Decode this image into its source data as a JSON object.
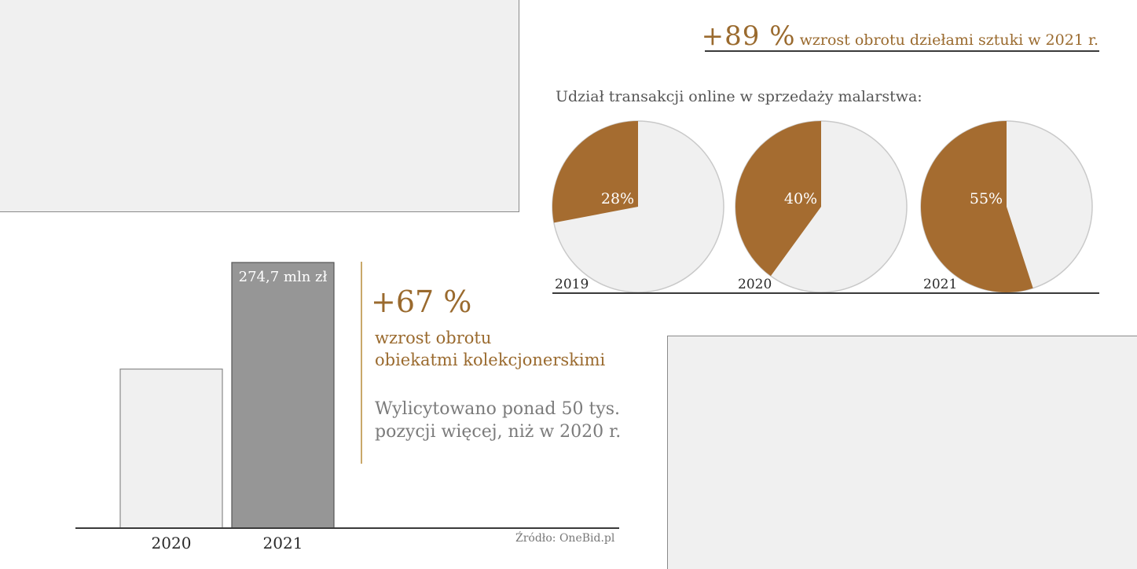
{
  "headline": {
    "value": "+89 %",
    "text": "wzrost obrotu dziełami sztuki w 2021 r."
  },
  "collectibles": {
    "value": "+67 %",
    "line1": "wzrost obrotu",
    "line2": "obiekatmi kolekcjonerskimi",
    "note_line1": "Wylicytowano ponad 50 tys.",
    "note_line2": "pozycji więcej, niż w 2020 r."
  },
  "source": "Źródło: OneBid.pl",
  "colors": {
    "accent": "#a56c30",
    "pie_rest": "#f0f0f0",
    "bar_2020": "#f0f0f0",
    "bar_2021": "#969696",
    "gold_line": "#c9a86a"
  },
  "chart_data": [
    {
      "type": "pie",
      "title": "Udział transakcji online w sprzedaży malarstwa:",
      "pies": [
        {
          "year": "2019",
          "online_share": 28,
          "label": "28%"
        },
        {
          "year": "2020",
          "online_share": 40,
          "label": "40%"
        },
        {
          "year": "2021",
          "online_share": 55,
          "label": "55%"
        }
      ]
    },
    {
      "type": "bar",
      "categories": [
        "2020",
        "2021"
      ],
      "values": [
        164.5,
        274.7
      ],
      "data_labels": [
        "",
        "274,7 mln zł"
      ],
      "ylim": [
        0,
        274.7
      ]
    }
  ]
}
